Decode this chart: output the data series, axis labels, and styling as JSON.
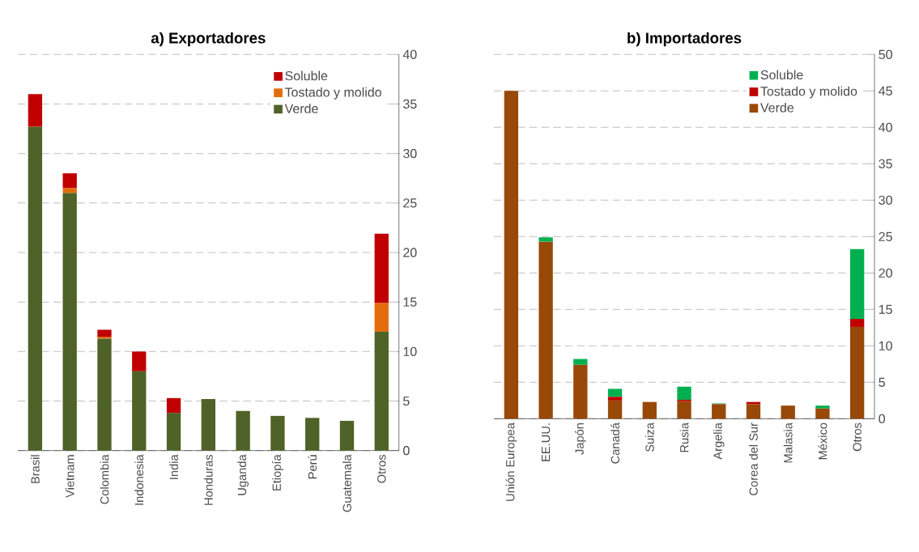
{
  "chart_data": [
    {
      "type": "bar",
      "stacked": true,
      "title": "a)   Exportadores",
      "categories": [
        "Brasil",
        "Vietnam",
        "Colombia",
        "Indonesia",
        "India",
        "Honduras",
        "Uganda",
        "Etiopía",
        "Perú",
        "Guatemala",
        "Otros"
      ],
      "series": [
        {
          "name": "Verde",
          "color": "#4f6228",
          "values": [
            32.7,
            26.0,
            11.3,
            8.0,
            3.8,
            5.2,
            4.0,
            3.5,
            3.3,
            3.0,
            12.0
          ]
        },
        {
          "name": "Tostado y molido",
          "color": "#e46c0a",
          "values": [
            null,
            0.5,
            0.2,
            null,
            null,
            null,
            null,
            null,
            null,
            null,
            2.9
          ]
        },
        {
          "name": "Soluble",
          "color": "#c00000",
          "values": [
            3.3,
            1.5,
            0.7,
            2.0,
            1.5,
            null,
            null,
            null,
            null,
            null,
            7.0
          ]
        }
      ],
      "ylim": [
        0,
        40
      ],
      "yticks": [
        0,
        5,
        10,
        15,
        20,
        25,
        30,
        35,
        40
      ],
      "grid": "y",
      "legend": "top right"
    },
    {
      "type": "bar",
      "stacked": true,
      "title": "b)   Importadores",
      "categories": [
        "Unión Europea",
        "EE.UU.",
        "Japón",
        "Canadá",
        "Suiza",
        "Rusia",
        "Argelia",
        "Corea del Sur",
        "Malasia",
        "México",
        "Otros"
      ],
      "series": [
        {
          "name": "Verde",
          "color": "#984807",
          "values": [
            45.0,
            24.3,
            7.4,
            2.5,
            2.3,
            2.4,
            2.0,
            2.0,
            1.8,
            1.4,
            12.6
          ]
        },
        {
          "name": "Tostado y molido",
          "color": "#c00000",
          "values": [
            null,
            null,
            null,
            0.5,
            null,
            0.2,
            null,
            0.3,
            null,
            null,
            1.1
          ]
        },
        {
          "name": "Soluble",
          "color": "#00b050",
          "values": [
            null,
            0.6,
            0.8,
            1.1,
            null,
            1.8,
            0.1,
            null,
            null,
            0.4,
            9.6
          ]
        }
      ],
      "ylim": [
        0,
        50
      ],
      "yticks": [
        0,
        5,
        10,
        15,
        20,
        25,
        30,
        35,
        40,
        45,
        50
      ],
      "grid": "y",
      "legend": "top right"
    }
  ]
}
